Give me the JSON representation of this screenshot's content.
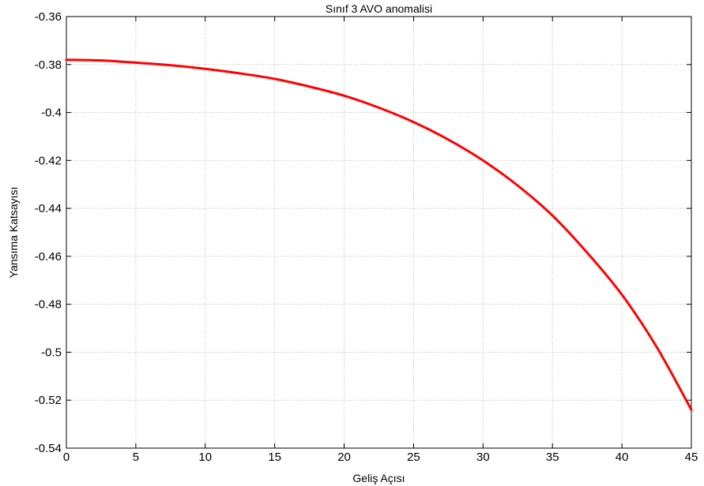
{
  "chart_data": {
    "type": "line",
    "title": "Sınıf 3 AVO anomalisi",
    "xlabel": "Geliş Açısı",
    "ylabel": "Yansıma Katsayısı",
    "xlim": [
      0,
      45
    ],
    "ylim": [
      -0.54,
      -0.36
    ],
    "xticks": [
      0,
      5,
      10,
      15,
      20,
      25,
      30,
      35,
      40,
      45
    ],
    "xtick_labels": [
      "0",
      "5",
      "10",
      "15",
      "20",
      "25",
      "30",
      "35",
      "40",
      "45"
    ],
    "yticks": [
      -0.36,
      -0.38,
      -0.4,
      -0.42,
      -0.44,
      -0.46,
      -0.48,
      -0.5,
      -0.52,
      -0.54
    ],
    "ytick_labels": [
      "-0.36",
      "-0.38",
      "-0.4",
      "-0.42",
      "-0.44",
      "-0.46",
      "-0.48",
      "-0.5",
      "-0.52",
      "-0.54"
    ],
    "grid": true,
    "series": [
      {
        "color": "#ff0000",
        "x": [
          0,
          2.5,
          5,
          7.5,
          10,
          12.5,
          15,
          17.5,
          20,
          22.5,
          25,
          27.5,
          30,
          32.5,
          35,
          37.5,
          40,
          42.5,
          45
        ],
        "y": [
          -0.378,
          -0.3783,
          -0.3792,
          -0.3803,
          -0.3818,
          -0.3837,
          -0.386,
          -0.3892,
          -0.393,
          -0.398,
          -0.404,
          -0.4113,
          -0.42,
          -0.4305,
          -0.443,
          -0.4585,
          -0.476,
          -0.4978,
          -0.524
        ]
      }
    ]
  }
}
